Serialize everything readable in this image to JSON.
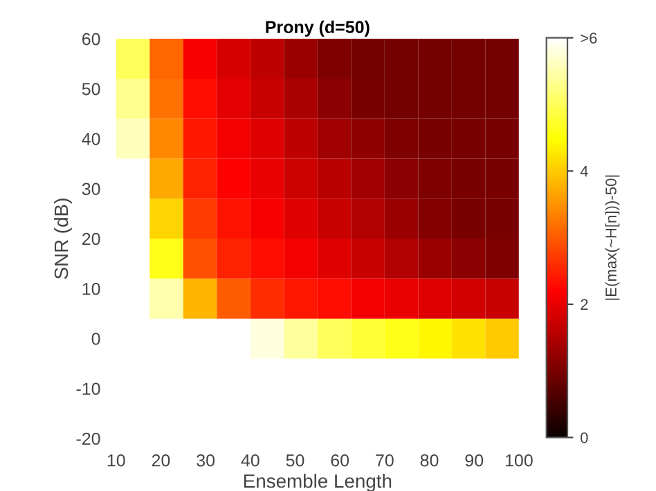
{
  "chart_data": {
    "type": "heatmap",
    "title": "Prony (d=50)",
    "xlabel": "Ensemble Length",
    "ylabel": "SNR (dB)",
    "clabel": "|E(max(~H[n]))-50|",
    "x": [
      13.75,
      21.25,
      28.75,
      36.25,
      43.75,
      51.25,
      58.75,
      66.25,
      73.75,
      81.25,
      88.75,
      96.25
    ],
    "y": [
      0,
      8,
      16,
      24,
      32,
      40,
      48,
      56
    ],
    "cells": [
      [
        6,
        6,
        6,
        6,
        5.8,
        5.4,
        5.0,
        4.8,
        4.6,
        4.4,
        4.2,
        4.0
      ],
      [
        6,
        5.5,
        3.8,
        3.0,
        2.6,
        2.4,
        2.3,
        2.1,
        2.0,
        1.9,
        1.8,
        1.7
      ],
      [
        6,
        4.6,
        2.9,
        2.5,
        2.3,
        2.1,
        1.9,
        1.7,
        1.5,
        1.3,
        1.15,
        1.05
      ],
      [
        6,
        4.1,
        2.7,
        2.35,
        2.15,
        1.9,
        1.7,
        1.5,
        1.3,
        1.1,
        1.0,
        1.0
      ],
      [
        6,
        3.7,
        2.5,
        2.2,
        2.0,
        1.75,
        1.55,
        1.35,
        1.15,
        1.05,
        1.0,
        1.0
      ],
      [
        5.6,
        3.4,
        2.4,
        2.1,
        1.9,
        1.6,
        1.35,
        1.2,
        1.05,
        1.0,
        1.0,
        1.0
      ],
      [
        5.3,
        3.2,
        2.3,
        1.95,
        1.7,
        1.45,
        1.15,
        1.0,
        0.95,
        0.95,
        0.95,
        0.95
      ],
      [
        5.0,
        3.1,
        2.15,
        1.85,
        1.6,
        1.3,
        1.05,
        0.95,
        0.95,
        0.95,
        0.95,
        0.95
      ]
    ],
    "xlim": [
      10,
      100
    ],
    "xticks": [
      10,
      20,
      30,
      40,
      50,
      60,
      70,
      80,
      90,
      100
    ],
    "ylim": [
      -20,
      60
    ],
    "yticks": [
      -20,
      -10,
      0,
      10,
      20,
      30,
      40,
      50,
      60
    ],
    "clim": [
      0,
      6
    ],
    "cticks": [
      0,
      2,
      4,
      {
        "value": 6,
        "label": ">6"
      }
    ]
  }
}
